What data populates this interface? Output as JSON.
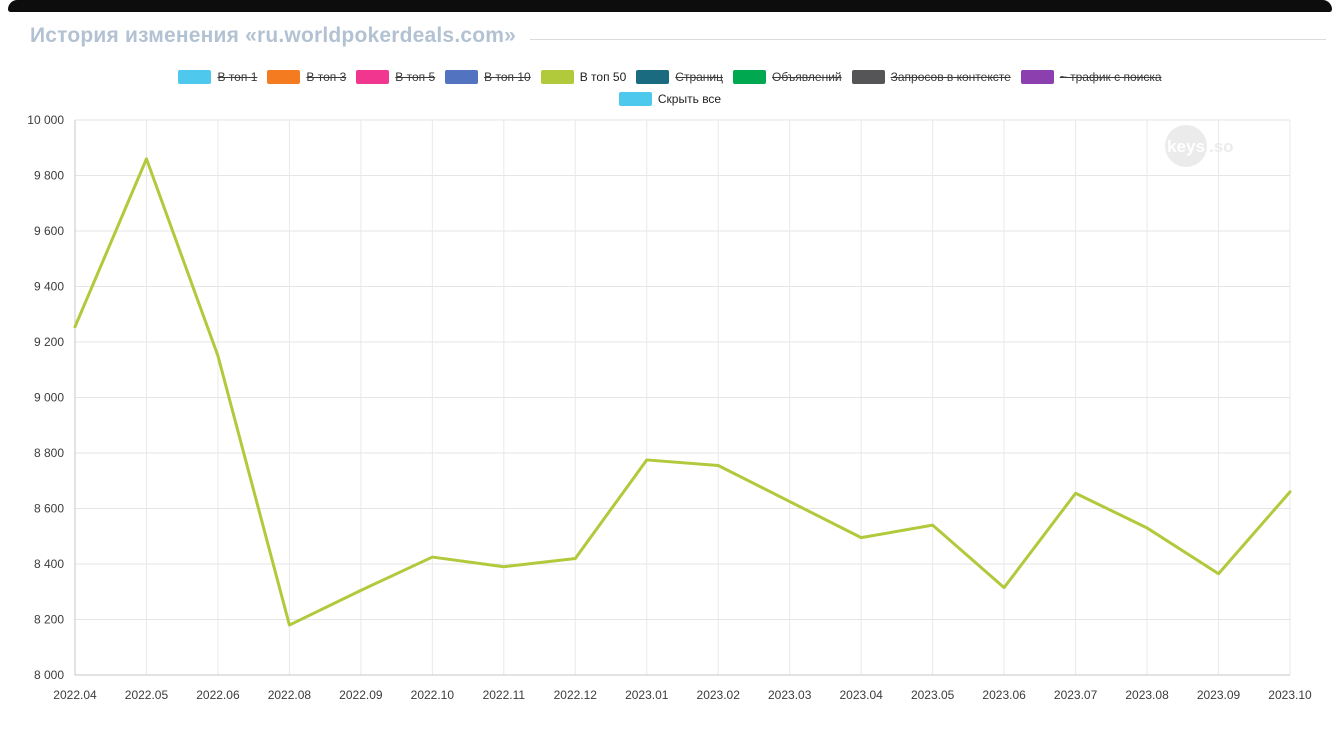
{
  "header": {
    "title": "История изменения «ru.worldpokerdeals.com»"
  },
  "legend": {
    "items": [
      {
        "label": "В топ 1",
        "color": "#4fc8ee",
        "disabled": true
      },
      {
        "label": "В топ 3",
        "color": "#f47b20",
        "disabled": true
      },
      {
        "label": "В топ 5",
        "color": "#f0368f",
        "disabled": true
      },
      {
        "label": "В топ 10",
        "color": "#5273c0",
        "disabled": true
      },
      {
        "label": "В топ 50",
        "color": "#b0ca3c",
        "disabled": false
      },
      {
        "label": "Страниц",
        "color": "#1a6a80",
        "disabled": true
      },
      {
        "label": "Объявлений",
        "color": "#00a850",
        "disabled": true
      },
      {
        "label": "Запросов в контексте",
        "color": "#555557",
        "disabled": true
      },
      {
        "label": "~ трафик с поиска",
        "color": "#8c3fae",
        "disabled": true
      }
    ],
    "hide_all": {
      "label": "Скрыть все",
      "color": "#4fc8ee",
      "disabled": false
    }
  },
  "watermark": "keys.so",
  "chart_data": {
    "type": "line",
    "x": [
      "2022.04",
      "2022.05",
      "2022.06",
      "2022.08",
      "2022.09",
      "2022.10",
      "2022.11",
      "2022.12",
      "2023.01",
      "2023.02",
      "2023.03",
      "2023.04",
      "2023.05",
      "2023.06",
      "2023.07",
      "2023.08",
      "2023.09",
      "2023.10"
    ],
    "series": [
      {
        "name": "В топ 50",
        "color": "#b0ca3c",
        "values": [
          9255,
          9860,
          9150,
          8180,
          8305,
          8425,
          8390,
          8420,
          8775,
          8755,
          8625,
          8495,
          8540,
          8315,
          8655,
          8530,
          8365,
          8660
        ]
      }
    ],
    "title": "История изменения «ru.worldpokerdeals.com»",
    "xlabel": "",
    "ylabel": "",
    "ylim": [
      8000,
      10000
    ],
    "ytick_step": 200,
    "grid": true,
    "legend_position": "top"
  }
}
